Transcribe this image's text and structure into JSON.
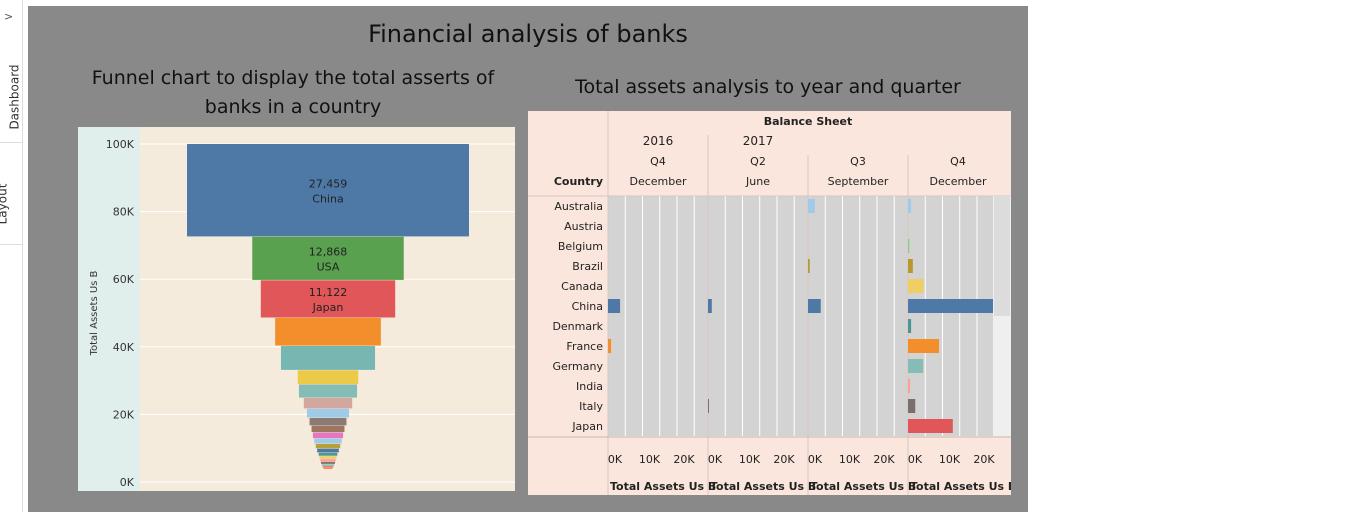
{
  "rail": {
    "arrow": ">",
    "tabs": [
      "Dashboard",
      "Layout"
    ]
  },
  "dashboard": {
    "title": "Financial analysis of banks",
    "funnel_title": "Funnel chart to display the total asserts of banks in a country",
    "bars_title": "Total assets analysis to year and quarter"
  },
  "colors": {
    "canvas": "#898989",
    "funnel_bg": "#f5ebdc",
    "funnel_axis_bg": "#e1efec",
    "bars_header_bg": "#fbe6dd",
    "bars_pane": "#d3d3d3"
  },
  "chart_data": [
    {
      "type": "bar",
      "subtype": "funnel",
      "ylabel": "Total Assets Us B",
      "ylim": [
        0,
        100000
      ],
      "yticks": [
        "0K",
        "20K",
        "40K",
        "60K",
        "80K",
        "100K"
      ],
      "ytick_values": [
        0,
        20000,
        40000,
        60000,
        80000,
        100000
      ],
      "segments": [
        {
          "label": "China",
          "value": 27459,
          "value_label": "27,459",
          "color": "#4e79a7"
        },
        {
          "label": "USA",
          "value": 12868,
          "value_label": "12,868",
          "color": "#59a14f"
        },
        {
          "label": "Japan",
          "value": 11122,
          "value_label": "11,122",
          "color": "#e15759"
        },
        {
          "value": 8300,
          "color": "#f28e2b"
        },
        {
          "value": 7200,
          "color": "#76b7b2"
        },
        {
          "value": 4200,
          "color": "#edc948"
        },
        {
          "value": 4000,
          "color": "#86bcb6"
        },
        {
          "value": 3200,
          "color": "#d4a6a0"
        },
        {
          "value": 2700,
          "color": "#a0cbe8"
        },
        {
          "value": 2300,
          "color": "#8c7b75"
        },
        {
          "value": 2000,
          "color": "#9d7660"
        },
        {
          "value": 1800,
          "color": "#e377c2"
        },
        {
          "value": 1600,
          "color": "#a0cbe8"
        },
        {
          "value": 1400,
          "color": "#b8a038"
        },
        {
          "value": 1200,
          "color": "#4e79a7"
        },
        {
          "value": 1000,
          "color": "#499894"
        },
        {
          "value": 900,
          "color": "#f1ce63"
        },
        {
          "value": 800,
          "color": "#ff9d9a"
        },
        {
          "value": 700,
          "color": "#79706e"
        },
        {
          "value": 600,
          "color": "#86bcb6"
        },
        {
          "value": 500,
          "color": "#e15759"
        },
        {
          "value": 400,
          "color": "#f28e2b"
        }
      ]
    },
    {
      "type": "bar",
      "orientation": "horizontal",
      "header_title": "Balance Sheet",
      "row_field": "Country",
      "xlabel": "Total Assets Us B",
      "xtick_labels": [
        "0K",
        "10K",
        "20K"
      ],
      "xtick_values": [
        0,
        10000,
        20000
      ],
      "xlim": [
        0,
        29000
      ],
      "years": [
        {
          "label": "2016",
          "span": 1
        },
        {
          "label": "2017",
          "span": 3
        }
      ],
      "panels": [
        {
          "quarter": "Q4",
          "month": "December"
        },
        {
          "quarter": "Q2",
          "month": "June"
        },
        {
          "quarter": "Q3",
          "month": "September"
        },
        {
          "quarter": "Q4",
          "month": "December"
        }
      ],
      "countries": [
        "Australia",
        "Austria",
        "Belgium",
        "Brazil",
        "Canada",
        "China",
        "Denmark",
        "France",
        "Germany",
        "India",
        "Italy",
        "Japan"
      ],
      "colors": [
        "#a0cbe8",
        "#4e79a7",
        "#8cd17d",
        "#b6992d",
        "#f1ce63",
        "#4e79a7",
        "#499894",
        "#f28e2b",
        "#86bcb6",
        "#ff9d9a",
        "#79706e",
        "#e15759"
      ],
      "series": [
        {
          "name": "2016 Q4 December",
          "values": [
            0,
            0,
            0,
            0,
            0,
            3500,
            0,
            900,
            0,
            0,
            0,
            0
          ]
        },
        {
          "name": "2017 Q2 June",
          "values": [
            0,
            0,
            0,
            0,
            0,
            1100,
            0,
            0,
            0,
            0,
            250,
            0
          ]
        },
        {
          "name": "2017 Q3 September",
          "values": [
            2000,
            0,
            0,
            500,
            0,
            3700,
            0,
            0,
            0,
            0,
            0,
            0
          ]
        },
        {
          "name": "2017 Q4 December",
          "values": [
            900,
            0,
            400,
            1400,
            4500,
            27459,
            900,
            9000,
            4400,
            600,
            2100,
            13000
          ]
        }
      ]
    }
  ]
}
